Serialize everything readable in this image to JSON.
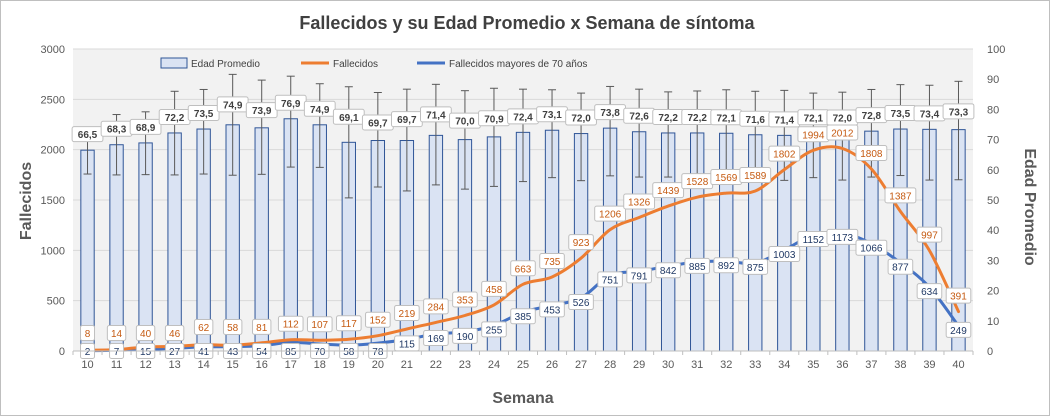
{
  "chart_data": {
    "type": "bar",
    "title": "Fallecidos y su Edad Promedio  x Semana de síntoma",
    "xlabel": "Semana",
    "ylabel_left": "Fallecidos",
    "ylabel_right": "Edad Promedio",
    "ylim_left": [
      0,
      3000
    ],
    "ylim_right": [
      0,
      100
    ],
    "yticks_left": [
      "0",
      "500",
      "1000",
      "1500",
      "2000",
      "2500",
      "3000"
    ],
    "yticks_right": [
      "0",
      "10",
      "20",
      "30",
      "40",
      "50",
      "60",
      "70",
      "80",
      "90",
      "100"
    ],
    "categories": [
      "10",
      "11",
      "12",
      "13",
      "14",
      "15",
      "16",
      "17",
      "18",
      "19",
      "20",
      "21",
      "22",
      "23",
      "24",
      "25",
      "26",
      "27",
      "28",
      "29",
      "30",
      "31",
      "32",
      "33",
      "34",
      "35",
      "36",
      "37",
      "38",
      "39",
      "40"
    ],
    "legend_position": "top",
    "grid": true,
    "series": [
      {
        "name": "Edad Promedio",
        "type": "bar",
        "axis": "right",
        "color": "#dae3f3",
        "border": "#2f5597",
        "values": [
          66.5,
          68.3,
          68.9,
          72.2,
          73.5,
          74.9,
          73.9,
          76.9,
          74.9,
          69.1,
          69.7,
          69.7,
          71.4,
          70.0,
          70.9,
          72.4,
          73.1,
          72.0,
          73.8,
          72.6,
          72.2,
          72.2,
          72.1,
          71.6,
          71.4,
          72.1,
          72.0,
          72.8,
          73.5,
          73.4,
          73.3
        ],
        "labels": [
          "66,5",
          "68,3",
          "68,9",
          "72,2",
          "73,5",
          "74,9",
          "73,9",
          "76,9",
          "74,9",
          "69,1",
          "69,7",
          "69,7",
          "71,4",
          "70,0",
          "70,9",
          "72,4",
          "73,1",
          "72,0",
          "73,8",
          "72,6",
          "72,2",
          "72,2",
          "72,1",
          "71,6",
          "71,4",
          "72,1",
          "72,0",
          "72,8",
          "73,5",
          "73,4",
          "73,3"
        ],
        "error_high": [
          71.8,
          78.3,
          79.2,
          86.0,
          86.6,
          91.6,
          89.7,
          91.0,
          88.5,
          87.5,
          85.6,
          86.7,
          88.3,
          86.2,
          87.0,
          86.7,
          86.5,
          85.4,
          87.6,
          86.7,
          85.8,
          86.1,
          86.5,
          86.0,
          86.3,
          85.4,
          85.7,
          86.6,
          88.2,
          88.0,
          89.3
        ],
        "error_low": [
          58.6,
          58.3,
          58.4,
          58.3,
          58.6,
          58.2,
          58.5,
          60.9,
          60.8,
          50.7,
          54.3,
          53.0,
          55.0,
          53.6,
          54.5,
          56.1,
          57.4,
          56.4,
          58.0,
          57.6,
          57.6,
          57.5,
          56.6,
          56.4,
          56.5,
          57.4,
          56.6,
          57.6,
          58.1,
          56.6,
          56.7
        ]
      },
      {
        "name": "Fallecidos",
        "type": "line",
        "axis": "left",
        "color": "#ed7d31",
        "label_color": "#c55a11",
        "values": [
          8,
          14,
          40,
          46,
          62,
          58,
          81,
          112,
          107,
          117,
          152,
          219,
          284,
          353,
          458,
          663,
          735,
          923,
          1206,
          1326,
          1439,
          1528,
          1569,
          1589,
          1802,
          1994,
          2012,
          1808,
          1387,
          997,
          391
        ]
      },
      {
        "name": "Fallecidos mayores de 70 años",
        "type": "line",
        "axis": "left",
        "color": "#4472c4",
        "label_color": "#1f3864",
        "values": [
          2,
          7,
          15,
          27,
          41,
          43,
          54,
          85,
          70,
          58,
          78,
          115,
          169,
          190,
          255,
          385,
          453,
          526,
          751,
          791,
          842,
          885,
          892,
          875,
          1003,
          1152,
          1173,
          1066,
          877,
          634,
          249
        ]
      }
    ]
  },
  "colors": {
    "grid": "#d9d9d9",
    "plot_bg": "#f2f2f2",
    "axis_text": "#595959",
    "title_text": "#404040",
    "error_bar": "#595959"
  }
}
